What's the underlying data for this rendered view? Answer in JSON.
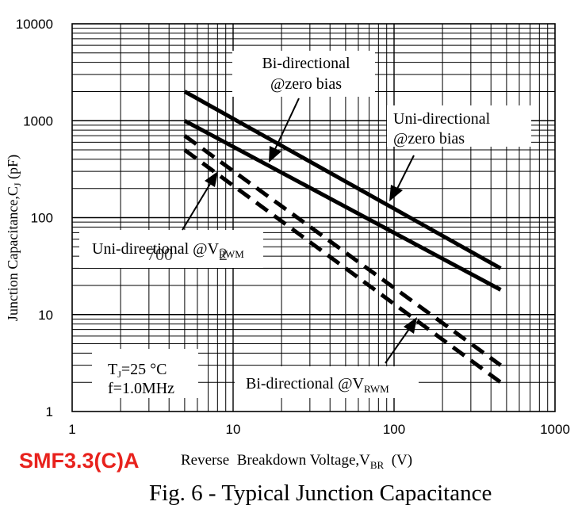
{
  "chart_data": {
    "type": "line",
    "scale": "log-log",
    "xlim": [
      1,
      1000
    ],
    "ylim": [
      1,
      10000
    ],
    "x_ticks": [
      "1",
      "10",
      "100",
      "1000"
    ],
    "y_ticks": [
      "1",
      "10",
      "100",
      "1000",
      "10000"
    ],
    "ylabel_main": "Junction Capacitance,C",
    "ylabel_sub": "J",
    "ylabel_unit": " (pF)",
    "xlabel_main": "Reverse  Breakdown Voltage,V",
    "xlabel_sub": "BR",
    "xlabel_unit": "  (V)",
    "series": [
      {
        "name": "Uni-directional @zero bias",
        "style": "solid",
        "x": [
          5,
          460
        ],
        "y": [
          2000,
          30
        ]
      },
      {
        "name": "Bi-directional @zero bias",
        "style": "solid",
        "x": [
          5,
          460
        ],
        "y": [
          1000,
          18
        ]
      },
      {
        "name": "Uni-directional @V RWM",
        "style": "dashed",
        "x": [
          5,
          460
        ],
        "y": [
          700,
          3
        ]
      },
      {
        "name": "Bi-directional @V RWM",
        "style": "dashed",
        "x": [
          5,
          460
        ],
        "y": [
          500,
          2
        ]
      }
    ],
    "annotations": {
      "bi_zero": {
        "line1": "Bi-directional",
        "line2": "@zero bias"
      },
      "uni_zero": {
        "line1": "Uni-directional",
        "line2": "@zero bias"
      },
      "uni_vrwm": {
        "text": "Uni-directional @V",
        "sub": "RWM",
        "overlay": "700",
        "overlay2": "2"
      },
      "bi_vrwm": {
        "text": "Bi-directional @V",
        "sub": "RWM"
      },
      "conditions": {
        "tj": "T",
        "tj_sub": "J",
        "tj_value": "=25 °C",
        "freq": "f=1.0MHz"
      }
    }
  },
  "part_number": "SMF3.3(C)A",
  "caption": "Fig. 6 - Typical Junction Capacitance"
}
